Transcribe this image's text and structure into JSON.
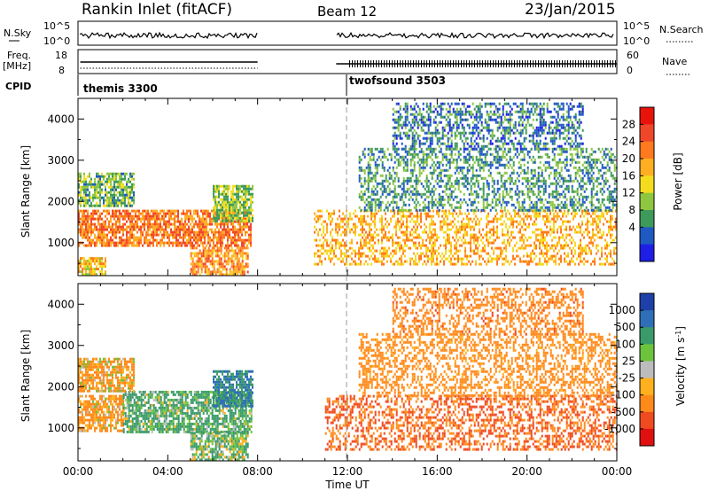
{
  "header": {
    "title": "Rankin Inlet (fitACF)",
    "beam": "Beam 12",
    "date": "23/Jan/2015"
  },
  "panels": {
    "nsky": {
      "label": "N.Sky",
      "left_ticks": [
        "10^5",
        "10^0"
      ],
      "right_ticks": [
        "10^5",
        "10^0"
      ],
      "right_label": "N.Search"
    },
    "freq": {
      "label_line1": "Freq.",
      "label_line2": "[MHz]",
      "left_ticks": [
        "18",
        "8"
      ],
      "right_ticks": [
        "60",
        "0"
      ],
      "right_label": "Nave"
    },
    "cpid": {
      "label": "CPID",
      "modes": [
        "themis 3300",
        "twofsound 3503"
      ]
    }
  },
  "power_panel": {
    "ylabel": "Slant Range [km]",
    "yticks": [
      "4000",
      "3000",
      "2000",
      "1000"
    ],
    "colorbar_label": "Power [dB]",
    "colorbar_ticks": [
      "28",
      "24",
      "20",
      "16",
      "12",
      "8",
      "4"
    ],
    "colorbar_colors": [
      "#e8140c",
      "#f0462a",
      "#ff7a1e",
      "#ffae22",
      "#f5dc1e",
      "#8ec640",
      "#3e9a5a",
      "#1e5ac2",
      "#1e1ee6"
    ]
  },
  "velocity_panel": {
    "ylabel": "Slant Range [km]",
    "yticks": [
      "4000",
      "3000",
      "2000",
      "1000"
    ],
    "colorbar_label": "Velocity [m s^-1]",
    "colorbar_ticks": [
      "1000",
      "500",
      "100",
      "25",
      "-25",
      "-100",
      "-500",
      "-1000"
    ],
    "colorbar_colors": [
      "#1e40a8",
      "#2f6fb8",
      "#3a9a6a",
      "#6cc43c",
      "#bcbcbc",
      "#ffb01e",
      "#ff8a1c",
      "#f04a20",
      "#e01010"
    ]
  },
  "xaxis": {
    "label": "Time UT",
    "ticks": [
      "00:00",
      "04:00",
      "08:00",
      "12:00",
      "16:00",
      "20:00",
      "00:00"
    ]
  },
  "chart_data": [
    {
      "type": "heatmap",
      "title": "Power",
      "xlabel": "Time UT",
      "ylabel": "Slant Range [km]",
      "xlim": [
        0,
        24
      ],
      "ylim": [
        200,
        4500
      ],
      "colorbar_label": "Power [dB]",
      "colorbar_range": [
        0,
        32
      ],
      "grid": false,
      "regions": [
        {
          "t0": 0.0,
          "t1": 7.7,
          "r0": 900,
          "r1": 1800,
          "value": 24
        },
        {
          "t0": 0.0,
          "t1": 2.5,
          "r0": 1900,
          "r1": 2700,
          "value": 10
        },
        {
          "t0": 0.0,
          "t1": 1.2,
          "r0": 250,
          "r1": 650,
          "value": 18
        },
        {
          "t0": 5.0,
          "t1": 7.6,
          "r0": 250,
          "r1": 900,
          "value": 22
        },
        {
          "t0": 6.0,
          "t1": 7.8,
          "r0": 1500,
          "r1": 2400,
          "value": 12
        },
        {
          "t0": 10.5,
          "t1": 24.0,
          "r0": 500,
          "r1": 1800,
          "value": 20
        },
        {
          "t0": 12.5,
          "t1": 24.0,
          "r0": 1800,
          "r1": 3300,
          "value": 8
        },
        {
          "t0": 14.0,
          "t1": 22.5,
          "r0": 3300,
          "r1": 4400,
          "value": 6
        }
      ]
    },
    {
      "type": "heatmap",
      "title": "Velocity",
      "xlabel": "Time UT",
      "ylabel": "Slant Range [km]",
      "xlim": [
        0,
        24
      ],
      "ylim": [
        200,
        4500
      ],
      "colorbar_label": "Velocity [m s^-1]",
      "colorbar_range": [
        -1000,
        1000
      ],
      "grid": false,
      "regions": [
        {
          "t0": 0.0,
          "t1": 2.0,
          "r0": 900,
          "r1": 1800,
          "value": -100
        },
        {
          "t0": 2.0,
          "t1": 7.7,
          "r0": 900,
          "r1": 1900,
          "value": 100
        },
        {
          "t0": 0.0,
          "t1": 2.5,
          "r0": 1900,
          "r1": 2700,
          "value": -80
        },
        {
          "t0": 5.0,
          "t1": 7.6,
          "r0": 250,
          "r1": 900,
          "value": 60
        },
        {
          "t0": 6.0,
          "t1": 7.8,
          "r0": 1500,
          "r1": 2400,
          "value": 300
        },
        {
          "t0": 11.0,
          "t1": 24.0,
          "r0": 500,
          "r1": 1800,
          "value": -300
        },
        {
          "t0": 12.5,
          "t1": 24.0,
          "r0": 1800,
          "r1": 3300,
          "value": -150
        },
        {
          "t0": 14.0,
          "t1": 22.5,
          "r0": 3300,
          "r1": 4400,
          "value": -200
        }
      ]
    }
  ]
}
